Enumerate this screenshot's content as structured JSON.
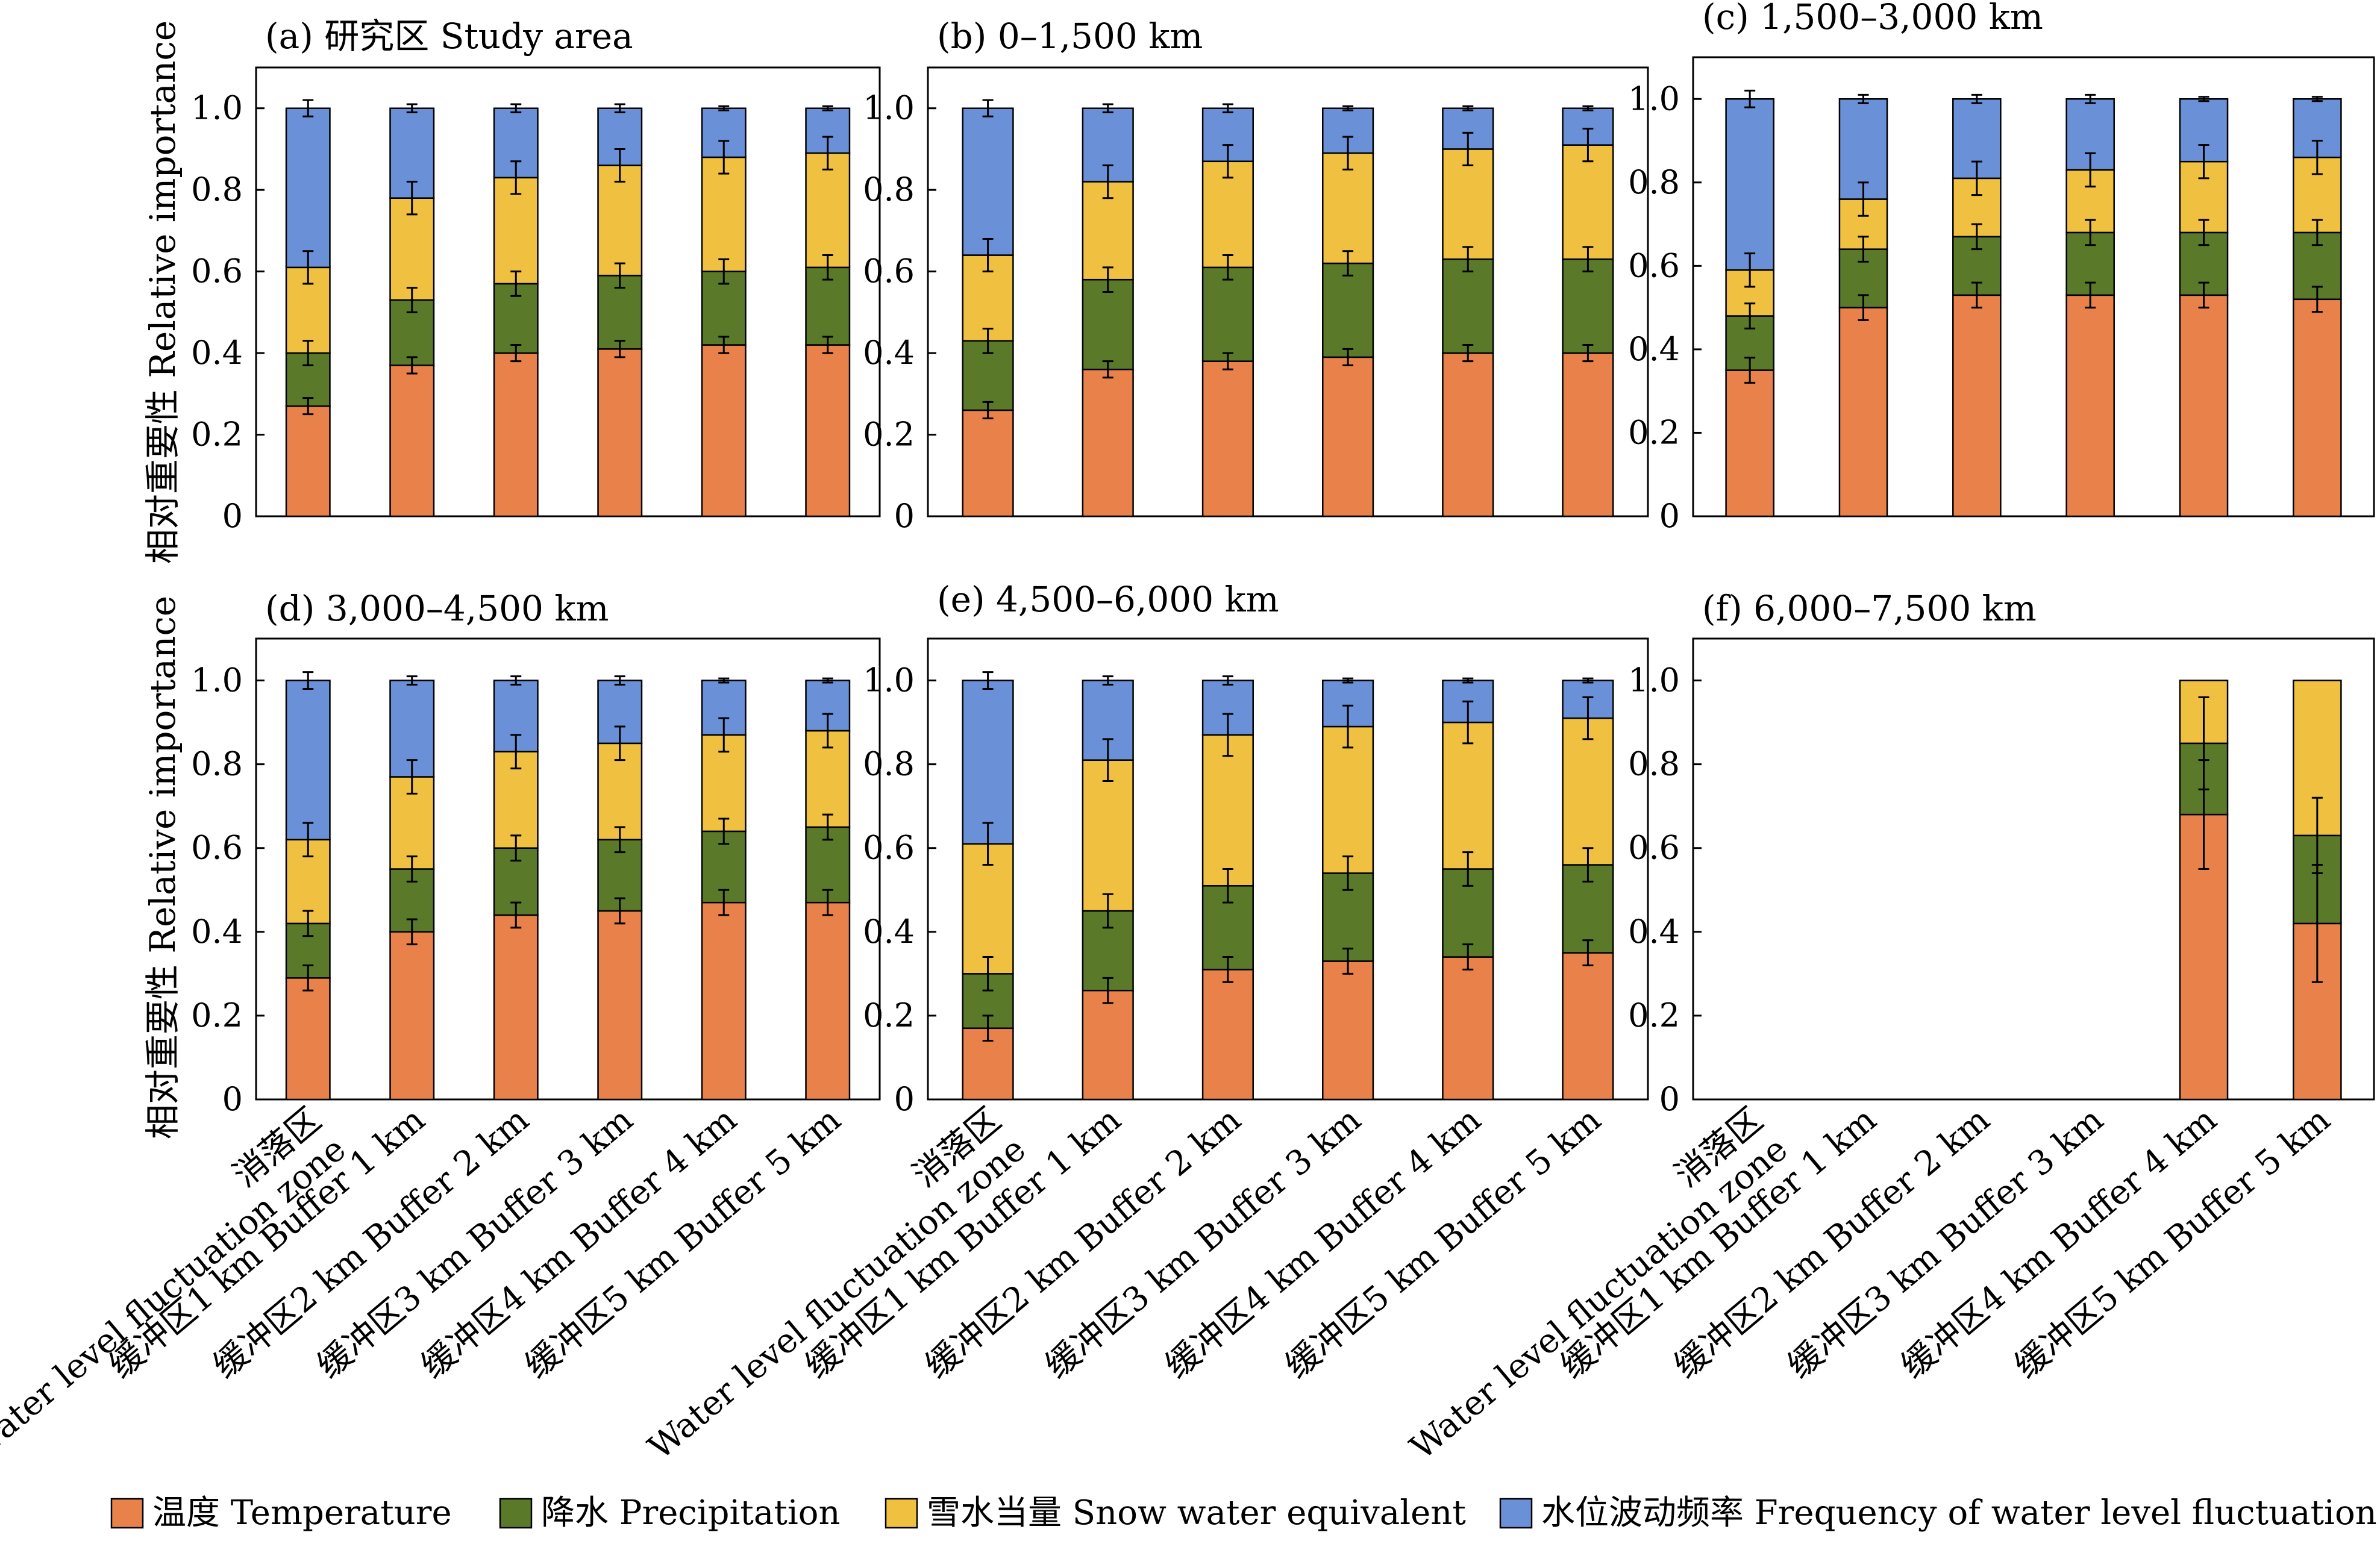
{
  "colors": {
    "temperature": "#E8824A",
    "precipitation": "#5A7A2A",
    "snow": "#F0C040",
    "frequency": "#6A90D8"
  },
  "ylabel": "相对重要性 Relative importance",
  "categories": [
    "消落区 Water level fluctuation zone",
    "缓冲区1 km Buffer 1 km",
    "缓冲区2 km Buffer 2 km",
    "缓冲区3 km Buffer 3 km",
    "缓冲区4 km Buffer 4 km",
    "缓冲区5 km Buffer 5 km"
  ],
  "category_lines": [
    [
      "消落区",
      "Water level fluctuation zone"
    ],
    [
      "缓冲区1 km Buffer 1 km"
    ],
    [
      "缓冲区2 km Buffer 2 km"
    ],
    [
      "缓冲区3 km Buffer 3 km"
    ],
    [
      "缓冲区4 km Buffer 4 km"
    ],
    [
      "缓冲区5 km Buffer 5 km"
    ]
  ],
  "legend": [
    {
      "key": "temperature",
      "label": "温度 Temperature"
    },
    {
      "key": "precipitation",
      "label": "降水 Precipitation"
    },
    {
      "key": "snow",
      "label": "雪水当量 Snow water equivalent"
    },
    {
      "key": "frequency",
      "label": "水位波动频率 Frequency of water level fluctuation"
    }
  ],
  "chart_data": [
    {
      "type": "bar",
      "stacked": true,
      "title": "(a) 研究区 Study area",
      "ylim": [
        0,
        1.1
      ],
      "yticks": [
        0,
        0.2,
        0.4,
        0.6,
        0.8,
        1.0
      ],
      "yticklabels": [
        "0",
        "0.2",
        "0.4",
        "0.6",
        "0.8",
        "1.0"
      ],
      "series": [
        {
          "name": "温度 Temperature",
          "values": [
            0.27,
            0.37,
            0.4,
            0.41,
            0.42,
            0.42
          ],
          "errors": [
            0.02,
            0.02,
            0.02,
            0.02,
            0.02,
            0.02
          ]
        },
        {
          "name": "降水 Precipitation",
          "values": [
            0.13,
            0.16,
            0.17,
            0.18,
            0.18,
            0.19
          ],
          "errors": [
            0.03,
            0.03,
            0.03,
            0.03,
            0.03,
            0.03
          ]
        },
        {
          "name": "雪水当量 Snow water equivalent",
          "values": [
            0.21,
            0.25,
            0.26,
            0.27,
            0.28,
            0.28
          ],
          "errors": [
            0.04,
            0.04,
            0.04,
            0.04,
            0.04,
            0.04
          ]
        },
        {
          "name": "水位波动频率 Frequency of water level fluctuation",
          "values": [
            0.39,
            0.22,
            0.17,
            0.14,
            0.12,
            0.11
          ],
          "errors": [
            0.02,
            0.01,
            0.01,
            0.01,
            0.005,
            0.005
          ]
        }
      ]
    },
    {
      "type": "bar",
      "stacked": true,
      "title": "(b) 0–1,500 km",
      "ylim": [
        0,
        1.1
      ],
      "yticks": [
        0,
        0.2,
        0.4,
        0.6,
        0.8,
        1.0
      ],
      "yticklabels": [
        "0",
        "0.2",
        "0.4",
        "0.6",
        "0.8",
        "1.0"
      ],
      "series": [
        {
          "name": "温度 Temperature",
          "values": [
            0.26,
            0.36,
            0.38,
            0.39,
            0.4,
            0.4
          ],
          "errors": [
            0.02,
            0.02,
            0.02,
            0.02,
            0.02,
            0.02
          ]
        },
        {
          "name": "降水 Precipitation",
          "values": [
            0.17,
            0.22,
            0.23,
            0.23,
            0.23,
            0.23
          ],
          "errors": [
            0.03,
            0.03,
            0.03,
            0.03,
            0.03,
            0.03
          ]
        },
        {
          "name": "雪水当量 Snow water equivalent",
          "values": [
            0.21,
            0.24,
            0.26,
            0.27,
            0.27,
            0.28
          ],
          "errors": [
            0.04,
            0.04,
            0.04,
            0.04,
            0.04,
            0.04
          ]
        },
        {
          "name": "水位波动频率 Frequency of water level fluctuation",
          "values": [
            0.36,
            0.18,
            0.13,
            0.11,
            0.1,
            0.09
          ],
          "errors": [
            0.02,
            0.01,
            0.01,
            0.005,
            0.005,
            0.005
          ]
        }
      ]
    },
    {
      "type": "bar",
      "stacked": true,
      "title": "(c) 1,500–3,000 km",
      "ylim": [
        0,
        1.1
      ],
      "yticks": [
        0,
        0.2,
        0.4,
        0.6,
        0.8,
        1.0
      ],
      "yticklabels": [
        "0",
        "0.2",
        "0.4",
        "0.6",
        "0.8",
        "1.0"
      ],
      "series": [
        {
          "name": "温度 Temperature",
          "values": [
            0.35,
            0.5,
            0.53,
            0.53,
            0.53,
            0.52
          ],
          "errors": [
            0.03,
            0.03,
            0.03,
            0.03,
            0.03,
            0.03
          ]
        },
        {
          "name": "降水 Precipitation",
          "values": [
            0.13,
            0.14,
            0.14,
            0.15,
            0.15,
            0.16
          ],
          "errors": [
            0.03,
            0.03,
            0.03,
            0.03,
            0.03,
            0.03
          ]
        },
        {
          "name": "雪水当量 Snow water equivalent",
          "values": [
            0.11,
            0.12,
            0.14,
            0.15,
            0.17,
            0.18
          ],
          "errors": [
            0.04,
            0.04,
            0.04,
            0.04,
            0.04,
            0.04
          ]
        },
        {
          "name": "水位波动频率 Frequency of water level fluctuation",
          "values": [
            0.41,
            0.24,
            0.19,
            0.17,
            0.15,
            0.14
          ],
          "errors": [
            0.02,
            0.01,
            0.01,
            0.01,
            0.005,
            0.005
          ]
        }
      ]
    },
    {
      "type": "bar",
      "stacked": true,
      "title": "(d) 3,000–4,500 km",
      "ylim": [
        0,
        1.1
      ],
      "yticks": [
        0,
        0.2,
        0.4,
        0.6,
        0.8,
        1.0
      ],
      "yticklabels": [
        "0",
        "0.2",
        "0.4",
        "0.6",
        "0.8",
        "1.0"
      ],
      "series": [
        {
          "name": "温度 Temperature",
          "values": [
            0.29,
            0.4,
            0.44,
            0.45,
            0.47,
            0.47
          ],
          "errors": [
            0.03,
            0.03,
            0.03,
            0.03,
            0.03,
            0.03
          ]
        },
        {
          "name": "降水 Precipitation",
          "values": [
            0.13,
            0.15,
            0.16,
            0.17,
            0.17,
            0.18
          ],
          "errors": [
            0.03,
            0.03,
            0.03,
            0.03,
            0.03,
            0.03
          ]
        },
        {
          "name": "雪水当量 Snow water equivalent",
          "values": [
            0.2,
            0.22,
            0.23,
            0.23,
            0.23,
            0.23
          ],
          "errors": [
            0.04,
            0.04,
            0.04,
            0.04,
            0.04,
            0.04
          ]
        },
        {
          "name": "水位波动频率 Frequency of water level fluctuation",
          "values": [
            0.38,
            0.23,
            0.17,
            0.15,
            0.13,
            0.12
          ],
          "errors": [
            0.02,
            0.01,
            0.01,
            0.01,
            0.005,
            0.005
          ]
        }
      ]
    },
    {
      "type": "bar",
      "stacked": true,
      "title": "(e) 4,500–6,000 km",
      "ylim": [
        0,
        1.1
      ],
      "yticks": [
        0,
        0.2,
        0.4,
        0.6,
        0.8,
        1.0
      ],
      "yticklabels": [
        "0",
        "0.2",
        "0.4",
        "0.6",
        "0.8",
        "1.0"
      ],
      "series": [
        {
          "name": "温度 Temperature",
          "values": [
            0.17,
            0.26,
            0.31,
            0.33,
            0.34,
            0.35
          ],
          "errors": [
            0.03,
            0.03,
            0.03,
            0.03,
            0.03,
            0.03
          ]
        },
        {
          "name": "降水 Precipitation",
          "values": [
            0.13,
            0.19,
            0.2,
            0.21,
            0.21,
            0.21
          ],
          "errors": [
            0.04,
            0.04,
            0.04,
            0.04,
            0.04,
            0.04
          ]
        },
        {
          "name": "雪水当量 Snow water equivalent",
          "values": [
            0.31,
            0.36,
            0.36,
            0.35,
            0.35,
            0.35
          ],
          "errors": [
            0.05,
            0.05,
            0.05,
            0.05,
            0.05,
            0.05
          ]
        },
        {
          "name": "水位波动频率 Frequency of water level fluctuation",
          "values": [
            0.39,
            0.19,
            0.13,
            0.11,
            0.1,
            0.09
          ],
          "errors": [
            0.02,
            0.01,
            0.01,
            0.005,
            0.005,
            0.005
          ]
        }
      ]
    },
    {
      "type": "bar",
      "stacked": true,
      "title": "(f) 6,000–7,500 km",
      "ylim": [
        0,
        1.1
      ],
      "yticks": [
        0,
        0.2,
        0.4,
        0.6,
        0.8,
        1.0
      ],
      "yticklabels": [
        "0",
        "0.2",
        "0.4",
        "0.6",
        "0.8",
        "1.0"
      ],
      "series": [
        {
          "name": "温度 Temperature",
          "values": [
            0,
            0,
            0,
            0,
            0.68,
            0.42
          ],
          "errors": [
            0,
            0,
            0,
            0,
            0.13,
            0.14
          ]
        },
        {
          "name": "降水 Precipitation",
          "values": [
            0,
            0,
            0,
            0,
            0.17,
            0.21
          ],
          "errors": [
            0,
            0,
            0,
            0,
            0.11,
            0.09
          ]
        },
        {
          "name": "雪水当量 Snow water equivalent",
          "values": [
            0,
            0,
            0,
            0,
            0.15,
            0.37
          ],
          "errors": [
            0,
            0,
            0,
            0,
            0,
            0
          ]
        },
        {
          "name": "水位波动频率 Frequency of water level fluctuation",
          "values": [
            0,
            0,
            0,
            0,
            0,
            0
          ],
          "errors": [
            0,
            0,
            0,
            0,
            0,
            0
          ]
        }
      ]
    }
  ]
}
